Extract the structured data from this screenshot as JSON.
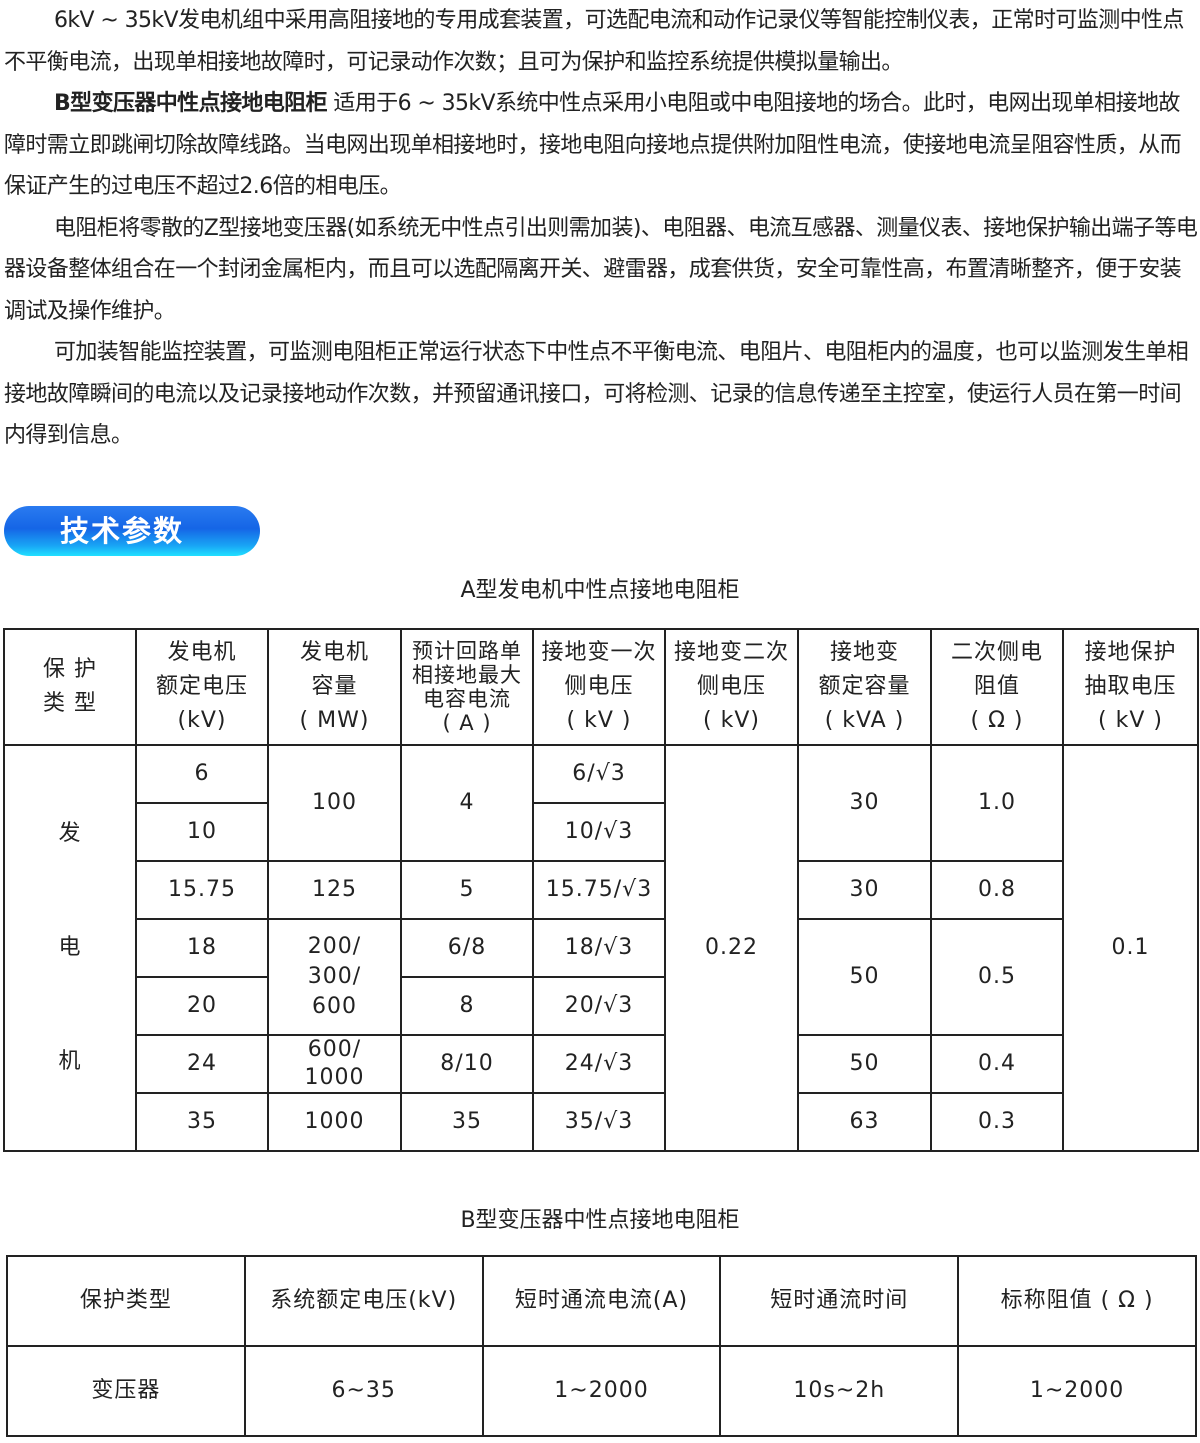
{
  "paragraphs": [
    {
      "bold": "",
      "text": "6kV ~ 35kV发电机组中采用高阻接地的专用成套装置，可选配电流和动作记录仪等智能控制仪表，正常时可监测中性点不平衡电流，出现单相接地故障时，可记录动作次数；且可为保护和监控系统提供模拟量输出。"
    },
    {
      "bold": "B型变压器中性点接地电阻柜",
      "text": " 适用于6 ~ 35kV系统中性点采用小电阻或中电阻接地的场合。此时，电网出现单相接地故障时需立即跳闸切除故障线路。当电网出现单相接地时，接地电阻向接地点提供附加阻性电流，使接地电流呈阻容性质，从而保证产生的过电压不超过2.6倍的相电压。"
    },
    {
      "bold": "",
      "text": "电阻柜将零散的Z型接地变压器(如系统无中性点引出则需加装)、电阻器、电流互感器、测量仪表、接地保护输出端子等电器设备整体组合在一个封闭金属柜内，而且可以选配隔离开关、避雷器，成套供货，安全可靠性高，布置清晰整齐，便于安装调试及操作维护。"
    },
    {
      "bold": "",
      "text": "可加装智能监控装置，可监测电阻柜正常运行状态下中性点不平衡电流、电阻片、电阻柜内的温度，也可以监测发生单相接地故障瞬间的电流以及记录接地动作次数，并预留通讯接口，可将检测、记录的信息传递至主控室，使运行人员在第一时间内得到信息。"
    }
  ],
  "section_badge": "技术参数",
  "table_a": {
    "caption": "A型发电机中性点接地电阻柜",
    "headers": [
      "保 护\n类 型",
      "发电机\n额定电压\n(kV)",
      "发电机\n容量\n( MW)",
      "预计回路单\n相接地最大\n电容电流\n( A )",
      "接地变一次\n侧电压\n( kV )",
      "接地变二次\n侧电压\n( kV)",
      "接地变\n额定容量\n( kVA )",
      "二次侧电\n阻值\n( Ω )",
      "接地保护\n抽取电压\n( kV )"
    ],
    "type": "发\n\n\n电\n\n\n机",
    "voltage": [
      "6",
      "10",
      "15.75",
      "18",
      "20",
      "24",
      "35"
    ],
    "capacity": [
      "100",
      "125",
      "200/\n300/\n600",
      "600/\n1000",
      "1000"
    ],
    "current": [
      "4",
      "5",
      "6/8",
      "8",
      "8/10",
      "35"
    ],
    "primary": [
      "6/√3",
      "10/√3",
      "15.75/√3",
      "18/√3",
      "20/√3",
      "24/√3",
      "35/√3"
    ],
    "secondary": "0.22",
    "rated_kva": [
      "30",
      "30",
      "50",
      "50",
      "63"
    ],
    "resistance": [
      "1.0",
      "0.8",
      "0.5",
      "0.4",
      "0.3"
    ],
    "protect_v": "0.1"
  },
  "table_b": {
    "caption": "B型变压器中性点接地电阻柜",
    "headers": [
      "保护类型",
      "系统额定电压(kV)",
      "短时通流电流(A)",
      "短时通流时间",
      "标称阻值 ( Ω )"
    ],
    "row": [
      "变压器",
      "6~35",
      "1~2000",
      "10s~2h",
      "1~2000"
    ]
  }
}
